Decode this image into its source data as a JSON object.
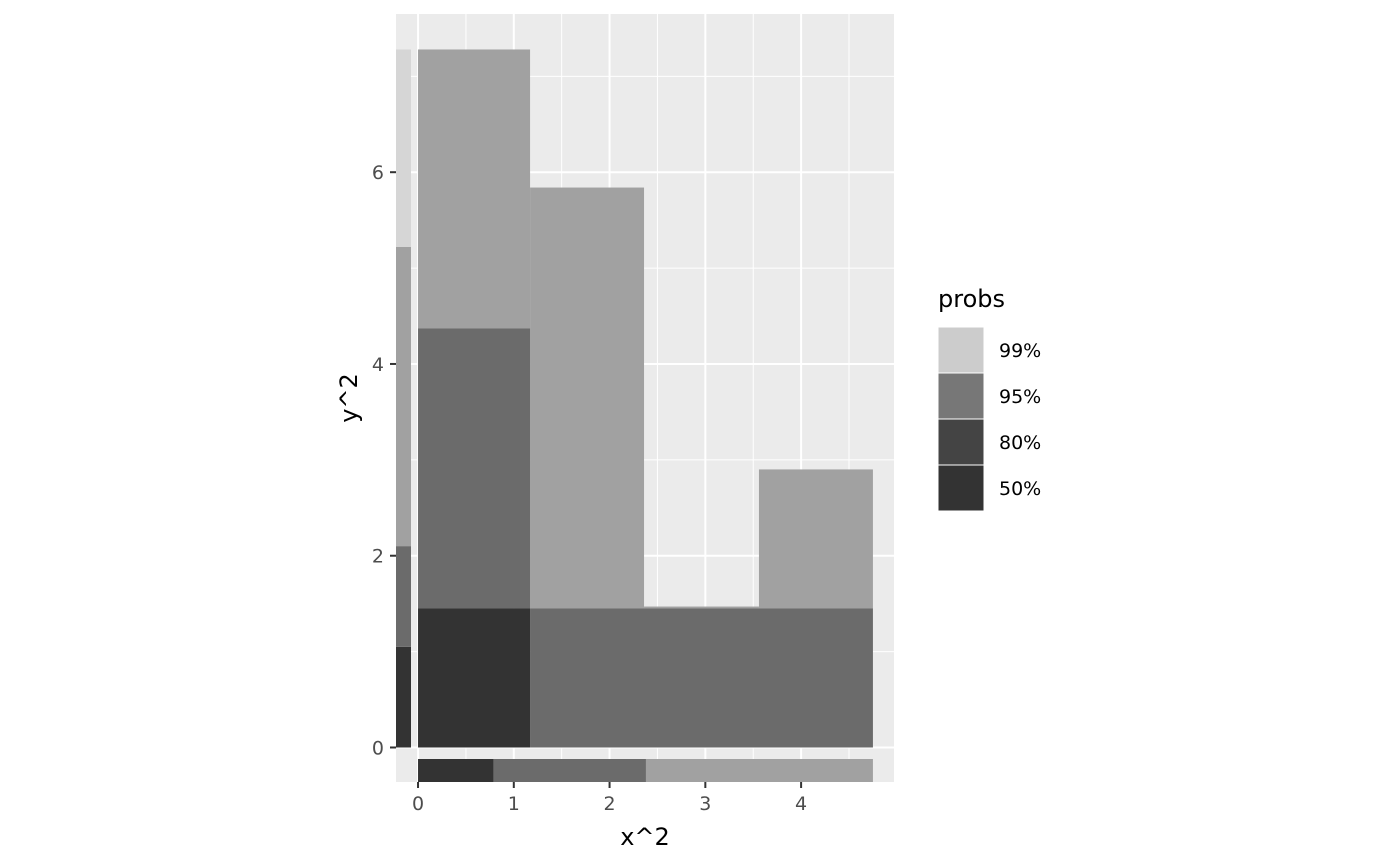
{
  "chart_data": {
    "type": "heatmap",
    "xlabel": "x^2",
    "ylabel": "y^2",
    "xlim": [
      -0.23,
      4.97
    ],
    "ylim": [
      -0.36,
      7.65
    ],
    "x_ticks": [
      "0",
      "1",
      "2",
      "3",
      "4"
    ],
    "y_ticks": [
      "0",
      "2",
      "4",
      "6"
    ],
    "x_minor_ticks": [
      0.5,
      1.5,
      2.5,
      3.5,
      4.5
    ],
    "y_minor_ticks": [
      1,
      3,
      5,
      7
    ],
    "grid": true,
    "panel_color": "#ebebeb",
    "legend": {
      "title": "probs",
      "position": "right",
      "entries": [
        {
          "label": "99%",
          "color": "#cccccc"
        },
        {
          "label": "95%",
          "color": "#777777"
        },
        {
          "label": "80%",
          "color": "#444444"
        },
        {
          "label": "50%",
          "color": "#333333"
        }
      ]
    },
    "fill_colors": {
      "99%": "#d6d6d6",
      "95%": "#a1a1a1",
      "80%": "#6b6b6b",
      "50%": "#333333"
    },
    "joint_regions": [
      {
        "level": "95%",
        "x": [
          0,
          1.17
        ],
        "y": [
          4.37,
          7.28
        ]
      },
      {
        "level": "95%",
        "x": [
          1.17,
          2.36
        ],
        "y": [
          1.45,
          5.84
        ]
      },
      {
        "level": "95%",
        "x": [
          2.36,
          3.56
        ],
        "y": [
          1.45,
          1.47
        ]
      },
      {
        "level": "95%",
        "x": [
          3.56,
          4.75
        ],
        "y": [
          1.45,
          2.9
        ]
      },
      {
        "level": "80%",
        "x": [
          0,
          1.17
        ],
        "y": [
          1.45,
          4.37
        ]
      },
      {
        "level": "80%",
        "x": [
          1.17,
          4.75
        ],
        "y": [
          0,
          1.45
        ]
      },
      {
        "level": "50%",
        "x": [
          0,
          1.17
        ],
        "y": [
          0,
          1.45
        ]
      }
    ],
    "x_marginal": [
      {
        "level": "50%",
        "x": [
          0,
          0.79
        ]
      },
      {
        "level": "80%",
        "x": [
          0.79,
          2.38
        ]
      },
      {
        "level": "95%",
        "x": [
          2.38,
          4.75
        ]
      }
    ],
    "y_marginal": [
      {
        "level": "50%",
        "y": [
          0,
          1.05
        ]
      },
      {
        "level": "80%",
        "y": [
          1.05,
          2.1
        ]
      },
      {
        "level": "95%",
        "y": [
          2.1,
          5.22
        ]
      },
      {
        "level": "99%",
        "y": [
          5.22,
          7.28
        ]
      }
    ]
  }
}
